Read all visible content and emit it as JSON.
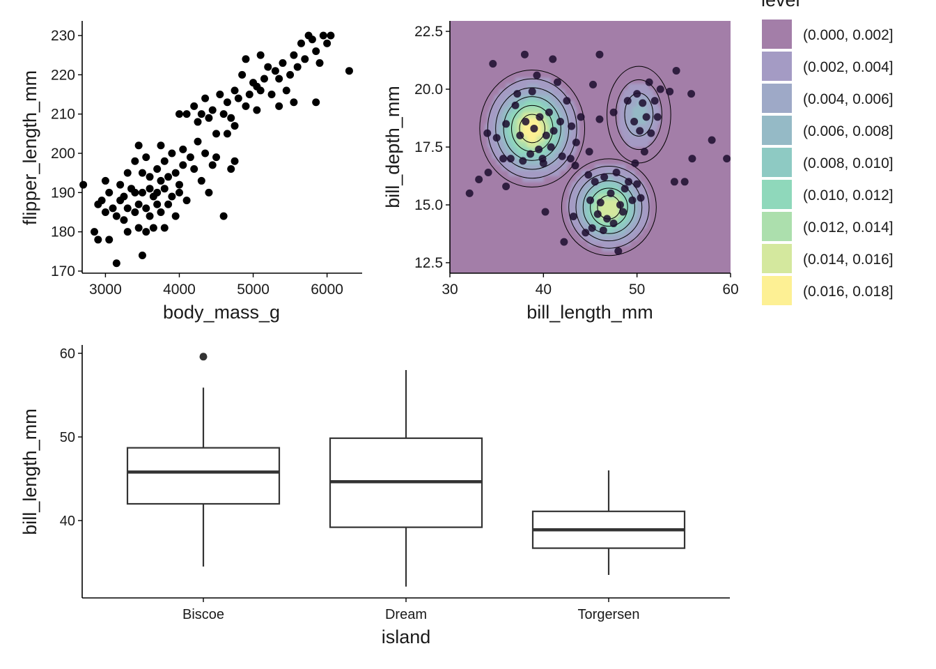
{
  "colors": {
    "axis": "#000000",
    "points": "#000000",
    "panel": "#a37ea8",
    "box_stroke": "#333333",
    "outlier": "#333333"
  },
  "chart_data": [
    {
      "type": "scatter",
      "xlabel": "body_mass_g",
      "ylabel": "flipper_length_mm",
      "xlim": [
        2600,
        6500
      ],
      "ylim": [
        169,
        232
      ],
      "xticks": [
        3000,
        4000,
        5000,
        6000
      ],
      "yticks": [
        170,
        180,
        190,
        200,
        210,
        220,
        230
      ],
      "grid": false,
      "points": [
        [
          2700,
          192
        ],
        [
          2850,
          180
        ],
        [
          2900,
          178
        ],
        [
          2900,
          187
        ],
        [
          2950,
          188
        ],
        [
          3000,
          193
        ],
        [
          3000,
          185
        ],
        [
          3050,
          190
        ],
        [
          3050,
          178
        ],
        [
          3100,
          186
        ],
        [
          3150,
          172
        ],
        [
          3150,
          184
        ],
        [
          3200,
          188
        ],
        [
          3200,
          192
        ],
        [
          3250,
          183
        ],
        [
          3250,
          189
        ],
        [
          3300,
          186
        ],
        [
          3300,
          180
        ],
        [
          3300,
          195
        ],
        [
          3350,
          191
        ],
        [
          3400,
          185
        ],
        [
          3400,
          198
        ],
        [
          3400,
          190
        ],
        [
          3450,
          187
        ],
        [
          3450,
          181
        ],
        [
          3450,
          202
        ],
        [
          3500,
          174
        ],
        [
          3500,
          195
        ],
        [
          3500,
          190
        ],
        [
          3550,
          186
        ],
        [
          3550,
          180
        ],
        [
          3550,
          199
        ],
        [
          3600,
          191
        ],
        [
          3600,
          184
        ],
        [
          3600,
          194
        ],
        [
          3650,
          189
        ],
        [
          3650,
          181
        ],
        [
          3700,
          196
        ],
        [
          3700,
          190
        ],
        [
          3700,
          187
        ],
        [
          3750,
          193
        ],
        [
          3750,
          185
        ],
        [
          3750,
          202
        ],
        [
          3800,
          191
        ],
        [
          3800,
          181
        ],
        [
          3800,
          198
        ],
        [
          3850,
          194
        ],
        [
          3850,
          187
        ],
        [
          3900,
          189
        ],
        [
          3900,
          200
        ],
        [
          3950,
          184
        ],
        [
          3950,
          195
        ],
        [
          4000,
          192
        ],
        [
          4000,
          190
        ],
        [
          4050,
          197
        ],
        [
          4050,
          201
        ],
        [
          4100,
          188
        ],
        [
          4150,
          199
        ],
        [
          4200,
          196
        ],
        [
          4250,
          203
        ],
        [
          4300,
          193
        ],
        [
          4350,
          200
        ],
        [
          4400,
          190
        ],
        [
          4450,
          197
        ],
        [
          4500,
          199
        ],
        [
          4600,
          184
        ],
        [
          4700,
          196
        ],
        [
          4750,
          198
        ],
        [
          4000,
          210
        ],
        [
          4100,
          210
        ],
        [
          4200,
          212
        ],
        [
          4250,
          208
        ],
        [
          4300,
          210
        ],
        [
          4350,
          214
        ],
        [
          4400,
          209
        ],
        [
          4450,
          211
        ],
        [
          4500,
          205
        ],
        [
          4550,
          215
        ],
        [
          4600,
          210
        ],
        [
          4650,
          213
        ],
        [
          4700,
          209
        ],
        [
          4750,
          216
        ],
        [
          4800,
          214
        ],
        [
          4850,
          220
        ],
        [
          4900,
          212
        ],
        [
          4950,
          215
        ],
        [
          5000,
          218
        ],
        [
          5050,
          217
        ],
        [
          5100,
          216
        ],
        [
          5150,
          219
        ],
        [
          5200,
          222
        ],
        [
          5250,
          215
        ],
        [
          5300,
          221
        ],
        [
          5350,
          219
        ],
        [
          5400,
          223
        ],
        [
          5450,
          216
        ],
        [
          5500,
          220
        ],
        [
          5550,
          225
        ],
        [
          5600,
          222
        ],
        [
          5650,
          228
        ],
        [
          5700,
          224
        ],
        [
          5750,
          230
        ],
        [
          5800,
          229
        ],
        [
          5850,
          226
        ],
        [
          5900,
          223
        ],
        [
          5950,
          230
        ],
        [
          6000,
          228
        ],
        [
          6050,
          230
        ],
        [
          6300,
          221
        ],
        [
          4900,
          224
        ],
        [
          5100,
          225
        ],
        [
          5350,
          212
        ],
        [
          5550,
          213
        ],
        [
          5850,
          213
        ],
        [
          4750,
          207
        ],
        [
          4650,
          205
        ],
        [
          5050,
          211
        ]
      ]
    },
    {
      "type": "heatmap",
      "xlabel": "bill_length_mm",
      "ylabel": "bill_depth_mm",
      "xlim": [
        30,
        60
      ],
      "ylim": [
        12,
        23.3
      ],
      "xticks": [
        30,
        40,
        50,
        60
      ],
      "yticks": [
        12.5,
        15.0,
        17.5,
        20.0,
        22.5
      ],
      "xtick_labels": [
        "30",
        "40",
        "50",
        "60"
      ],
      "ytick_labels": [
        "12.5",
        "15.0",
        "17.5",
        "20.0",
        "22.5"
      ],
      "legend_title": "level",
      "legend_position": "right",
      "levels": [
        {
          "label": "(0.000, 0.002]",
          "color": "#a37ea8"
        },
        {
          "label": "(0.002, 0.004]",
          "color": "#a49bc4"
        },
        {
          "label": "(0.004, 0.006]",
          "color": "#9ea9c7"
        },
        {
          "label": "(0.006, 0.008]",
          "color": "#95bac6"
        },
        {
          "label": "(0.008, 0.010]",
          "color": "#8ecac3"
        },
        {
          "label": "(0.010, 0.012]",
          "color": "#8fd8bb"
        },
        {
          "label": "(0.012, 0.014]",
          "color": "#acdfad"
        },
        {
          "label": "(0.014, 0.016]",
          "color": "#d4e89e"
        },
        {
          "label": "(0.016, 0.018]",
          "color": "#fdf094"
        }
      ],
      "points": [
        [
          32.1,
          15.5
        ],
        [
          33.1,
          16.1
        ],
        [
          34.6,
          21.1
        ],
        [
          35.0,
          17.9
        ],
        [
          36.0,
          18.5
        ],
        [
          36.5,
          17.0
        ],
        [
          37.0,
          19.3
        ],
        [
          37.5,
          18.0
        ],
        [
          37.8,
          16.9
        ],
        [
          38.1,
          18.6
        ],
        [
          38.6,
          17.2
        ],
        [
          38.8,
          19.9
        ],
        [
          39.0,
          18.3
        ],
        [
          39.3,
          20.6
        ],
        [
          39.5,
          17.4
        ],
        [
          39.6,
          18.8
        ],
        [
          40.0,
          16.8
        ],
        [
          40.3,
          18.0
        ],
        [
          40.6,
          19.0
        ],
        [
          40.8,
          17.5
        ],
        [
          41.1,
          18.2
        ],
        [
          41.5,
          20.3
        ],
        [
          41.8,
          18.6
        ],
        [
          42.0,
          17.1
        ],
        [
          42.5,
          19.5
        ],
        [
          43.0,
          18.4
        ],
        [
          43.5,
          17.7
        ],
        [
          44.0,
          18.8
        ],
        [
          34.0,
          18.1
        ],
        [
          35.7,
          17.0
        ],
        [
          37.2,
          19.8
        ],
        [
          39.9,
          17.0
        ],
        [
          42.9,
          17.0
        ],
        [
          44.8,
          16.3
        ],
        [
          43.2,
          14.5
        ],
        [
          44.5,
          13.8
        ],
        [
          45.0,
          15.2
        ],
        [
          45.2,
          14.0
        ],
        [
          45.5,
          16.0
        ],
        [
          45.8,
          14.6
        ],
        [
          46.1,
          15.1
        ],
        [
          46.4,
          13.9
        ],
        [
          46.5,
          16.2
        ],
        [
          46.8,
          14.4
        ],
        [
          47.2,
          15.5
        ],
        [
          47.5,
          14.2
        ],
        [
          47.8,
          16.4
        ],
        [
          48.2,
          15.0
        ],
        [
          48.5,
          14.7
        ],
        [
          48.7,
          15.7
        ],
        [
          49.1,
          16.0
        ],
        [
          49.5,
          15.2
        ],
        [
          49.8,
          16.8
        ],
        [
          50.0,
          15.9
        ],
        [
          50.4,
          15.3
        ],
        [
          50.8,
          17.3
        ],
        [
          43.4,
          16.7
        ],
        [
          44.9,
          17.3
        ],
        [
          42.2,
          13.4
        ],
        [
          46.0,
          21.5
        ],
        [
          49.0,
          19.5
        ],
        [
          49.7,
          18.6
        ],
        [
          50.0,
          19.8
        ],
        [
          50.3,
          18.2
        ],
        [
          50.6,
          19.4
        ],
        [
          51.0,
          18.8
        ],
        [
          51.3,
          20.3
        ],
        [
          51.5,
          18.1
        ],
        [
          51.9,
          19.5
        ],
        [
          52.2,
          18.8
        ],
        [
          52.5,
          20.0
        ],
        [
          53.5,
          19.9
        ],
        [
          54.2,
          20.8
        ],
        [
          55.8,
          19.8
        ],
        [
          55.1,
          16.0
        ],
        [
          55.9,
          17.0
        ],
        [
          58.0,
          17.8
        ],
        [
          59.6,
          17.0
        ],
        [
          38.0,
          21.5
        ],
        [
          36.0,
          15.8
        ],
        [
          47.5,
          19.0
        ],
        [
          46.0,
          18.7
        ],
        [
          41.0,
          21.3
        ],
        [
          34.1,
          16.4
        ],
        [
          45.3,
          20.2
        ],
        [
          54.0,
          16.0
        ],
        [
          40.2,
          14.7
        ],
        [
          48.0,
          13.0
        ]
      ]
    },
    {
      "type": "box",
      "xlabel": "island",
      "ylabel": "bill_length_mm",
      "ylim": [
        31,
        61
      ],
      "yticks": [
        40,
        50,
        60
      ],
      "categories": [
        "Biscoe",
        "Dream",
        "Torgersen"
      ],
      "boxes": [
        {
          "min": 34.5,
          "q1": 42.0,
          "median": 45.8,
          "q3": 48.7,
          "max": 55.9,
          "outliers": [
            59.6
          ]
        },
        {
          "min": 32.1,
          "q1": 39.2,
          "median": 44.65,
          "q3": 49.85,
          "max": 58.0,
          "outliers": []
        },
        {
          "min": 33.5,
          "q1": 36.7,
          "median": 38.9,
          "q3": 41.1,
          "max": 46.0,
          "outliers": []
        }
      ]
    }
  ]
}
